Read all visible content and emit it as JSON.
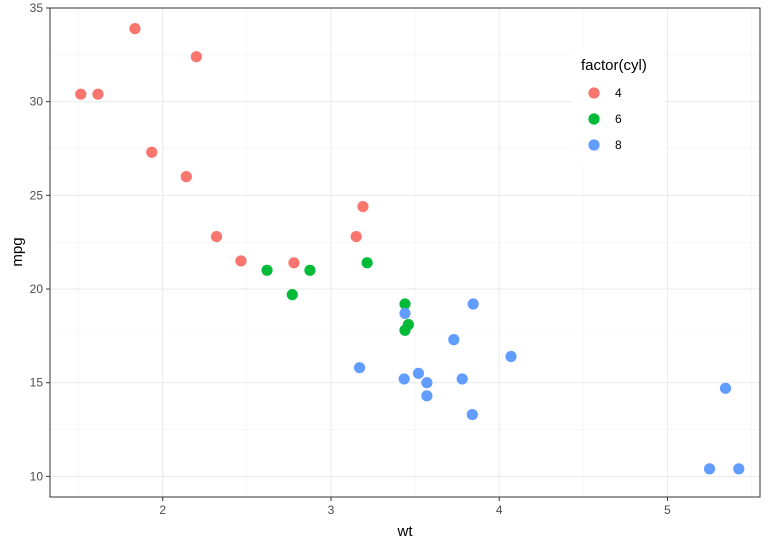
{
  "chart_data": {
    "type": "scatter",
    "xlabel": "wt",
    "ylabel": "mpg",
    "xlim": [
      1.33,
      5.55
    ],
    "ylim": [
      8.9,
      35.0
    ],
    "x_ticks": [
      2,
      3,
      4,
      5
    ],
    "x_tick_labels": [
      "2",
      "3",
      "4",
      "5"
    ],
    "y_ticks": [
      10,
      15,
      20,
      25,
      30,
      35
    ],
    "y_tick_labels": [
      "10",
      "15",
      "20",
      "25",
      "30",
      "35"
    ],
    "grid": true,
    "legend": {
      "title": "factor(cyl)",
      "placement": "top-right"
    },
    "series": [
      {
        "name": "4",
        "color": "#F8766D",
        "points": [
          {
            "x": 2.32,
            "y": 22.8
          },
          {
            "x": 3.19,
            "y": 24.4
          },
          {
            "x": 3.15,
            "y": 22.8
          },
          {
            "x": 2.2,
            "y": 32.4
          },
          {
            "x": 1.615,
            "y": 30.4
          },
          {
            "x": 1.835,
            "y": 33.9
          },
          {
            "x": 2.465,
            "y": 21.5
          },
          {
            "x": 1.935,
            "y": 27.3
          },
          {
            "x": 2.14,
            "y": 26.0
          },
          {
            "x": 1.513,
            "y": 30.4
          },
          {
            "x": 2.78,
            "y": 21.4
          }
        ]
      },
      {
        "name": "6",
        "color": "#00BA38",
        "points": [
          {
            "x": 2.62,
            "y": 21.0
          },
          {
            "x": 2.875,
            "y": 21.0
          },
          {
            "x": 3.215,
            "y": 21.4
          },
          {
            "x": 3.46,
            "y": 18.1
          },
          {
            "x": 3.44,
            "y": 19.2
          },
          {
            "x": 3.44,
            "y": 17.8
          },
          {
            "x": 2.77,
            "y": 19.7
          }
        ]
      },
      {
        "name": "8",
        "color": "#619CFF",
        "points": [
          {
            "x": 3.44,
            "y": 18.7
          },
          {
            "x": 3.57,
            "y": 14.3
          },
          {
            "x": 4.07,
            "y": 16.4
          },
          {
            "x": 3.73,
            "y": 17.3
          },
          {
            "x": 3.78,
            "y": 15.2
          },
          {
            "x": 5.25,
            "y": 10.4
          },
          {
            "x": 5.424,
            "y": 10.4
          },
          {
            "x": 5.345,
            "y": 14.7
          },
          {
            "x": 3.52,
            "y": 15.5
          },
          {
            "x": 3.435,
            "y": 15.2
          },
          {
            "x": 3.84,
            "y": 13.3
          },
          {
            "x": 3.845,
            "y": 19.2
          },
          {
            "x": 3.17,
            "y": 15.8
          },
          {
            "x": 3.57,
            "y": 15.0
          }
        ]
      }
    ]
  }
}
